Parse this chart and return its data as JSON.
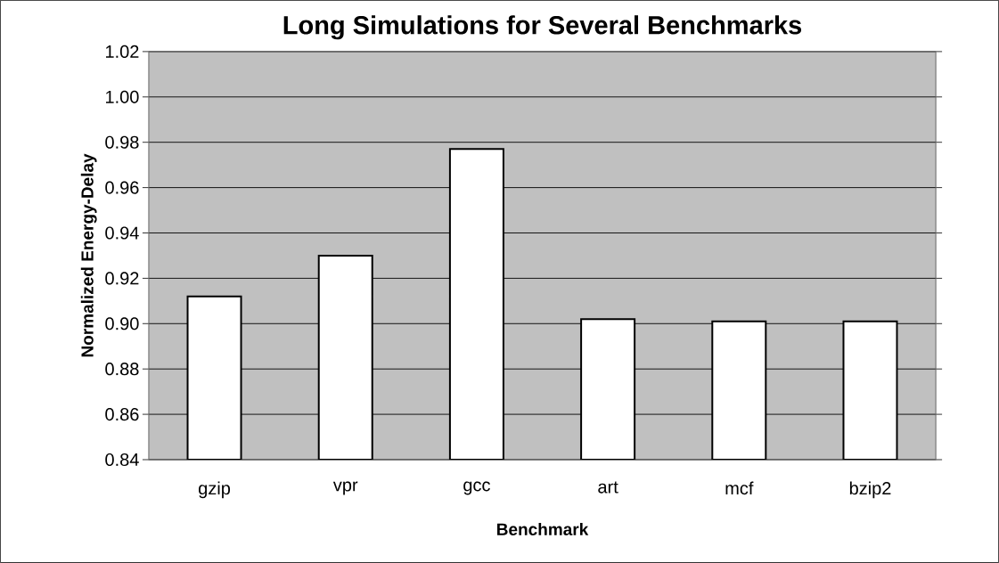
{
  "chart_data": {
    "type": "bar",
    "title": "Long Simulations for Several Benchmarks",
    "xlabel": "Benchmark",
    "ylabel": "Normalized Energy-Delay",
    "categories": [
      "gzip",
      "vpr",
      "gcc",
      "art",
      "mcf",
      "bzip2"
    ],
    "values": [
      0.912,
      0.93,
      0.977,
      0.902,
      0.901,
      0.901
    ],
    "color": "#ffffff",
    "ylim": [
      0.84,
      1.02
    ],
    "yticks": [
      {
        "value": 0.84,
        "label": "0.84"
      },
      {
        "value": 0.86,
        "label": "0.86"
      },
      {
        "value": 0.88,
        "label": "0.88"
      },
      {
        "value": 0.9,
        "label": "0.90"
      },
      {
        "value": 0.92,
        "label": "0.92"
      },
      {
        "value": 0.94,
        "label": "0.94"
      },
      {
        "value": 0.96,
        "label": "0.96"
      },
      {
        "value": 0.98,
        "label": "0.98"
      },
      {
        "value": 1.0,
        "label": "1.00"
      },
      {
        "value": 1.02,
        "label": "1.02"
      }
    ],
    "grid": "y"
  }
}
